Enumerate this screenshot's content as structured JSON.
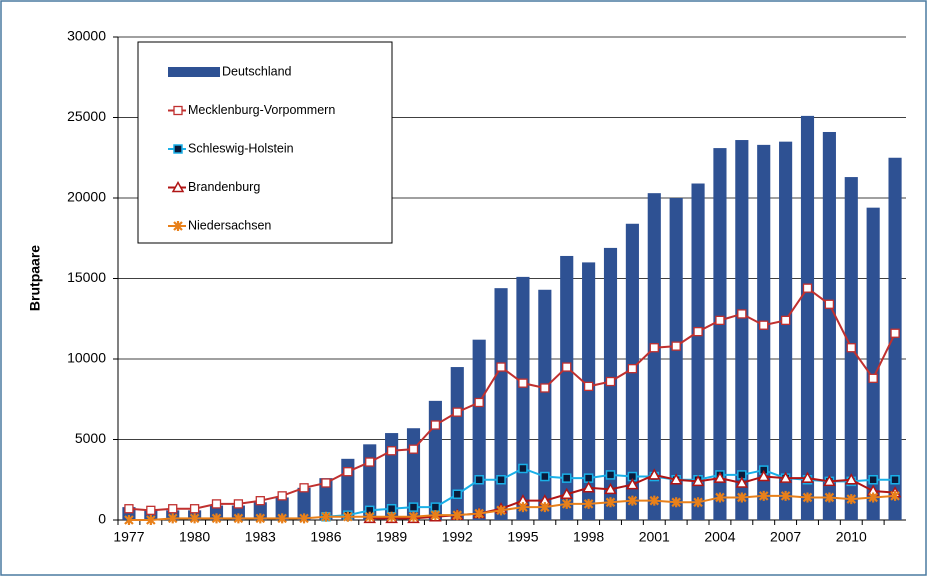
{
  "chart_data": {
    "type": "bar-line",
    "y_label": "Brutpaare",
    "categories": [
      "1977",
      null,
      null,
      "1980",
      null,
      null,
      "1983",
      null,
      null,
      "1986",
      null,
      null,
      "1989",
      null,
      null,
      "1992",
      null,
      null,
      "1995",
      null,
      null,
      "1998",
      null,
      null,
      "2001",
      null,
      null,
      "2004",
      null,
      null,
      "2007",
      null,
      null,
      "2010",
      null,
      null
    ],
    "series": [
      {
        "name": "Deutschland",
        "kind": "bar",
        "color": "#2e5193",
        "values": [
          800,
          600,
          600,
          600,
          900,
          900,
          1100,
          1400,
          2000,
          2600,
          3800,
          4700,
          5400,
          5700,
          7400,
          9500,
          11200,
          14400,
          15100,
          14300,
          16400,
          16000,
          16900,
          18400,
          20300,
          20000,
          20900,
          23100,
          23600,
          23300,
          23500,
          25100,
          24100,
          21300,
          19400,
          22500
        ]
      },
      {
        "name": "Mecklenburg-Vorpommern",
        "kind": "line",
        "marker": "square-open",
        "color": "#c0302f",
        "values": [
          700,
          600,
          700,
          700,
          1000,
          1000,
          1200,
          1500,
          2000,
          2300,
          3000,
          3600,
          4300,
          4400,
          5900,
          6700,
          7300,
          9500,
          8500,
          8200,
          9500,
          8300,
          8600,
          9400,
          10700,
          10800,
          11700,
          12400,
          12800,
          12100,
          12400,
          14400,
          13400,
          10700,
          8800,
          11600
        ]
      },
      {
        "name": "Schleswig-Holstein",
        "kind": "line",
        "marker": "square-filled",
        "color": "#1ab0e8",
        "values": [
          null,
          null,
          null,
          null,
          null,
          null,
          null,
          null,
          null,
          200,
          300,
          600,
          700,
          800,
          800,
          1600,
          2500,
          2500,
          3200,
          2700,
          2600,
          2600,
          2800,
          2700,
          2700,
          2500,
          2500,
          2800,
          2800,
          3100,
          2600,
          2500,
          2400,
          2400,
          2500,
          2500
        ]
      },
      {
        "name": "Brandenburg",
        "kind": "line",
        "marker": "triangle",
        "color": "#b01515",
        "values": [
          null,
          null,
          null,
          null,
          null,
          null,
          null,
          null,
          null,
          null,
          null,
          100,
          100,
          100,
          200,
          300,
          400,
          700,
          1200,
          1200,
          1600,
          2000,
          1900,
          2200,
          2800,
          2500,
          2400,
          2600,
          2300,
          2700,
          2600,
          2600,
          2400,
          2500,
          1800,
          1700
        ]
      },
      {
        "name": "Niedersachsen",
        "kind": "line",
        "marker": "star",
        "color": "#e8801a",
        "values": [
          0,
          0,
          100,
          100,
          100,
          100,
          100,
          100,
          100,
          200,
          200,
          200,
          200,
          200,
          300,
          300,
          400,
          600,
          800,
          800,
          1000,
          1000,
          1100,
          1200,
          1200,
          1100,
          1100,
          1400,
          1400,
          1500,
          1500,
          1400,
          1400,
          1300,
          1400,
          1500
        ]
      }
    ],
    "ylim": [
      0,
      30000
    ],
    "yticks": [
      0,
      5000,
      10000,
      15000,
      20000,
      25000,
      30000
    ],
    "grid": true,
    "legend": "top-left"
  }
}
